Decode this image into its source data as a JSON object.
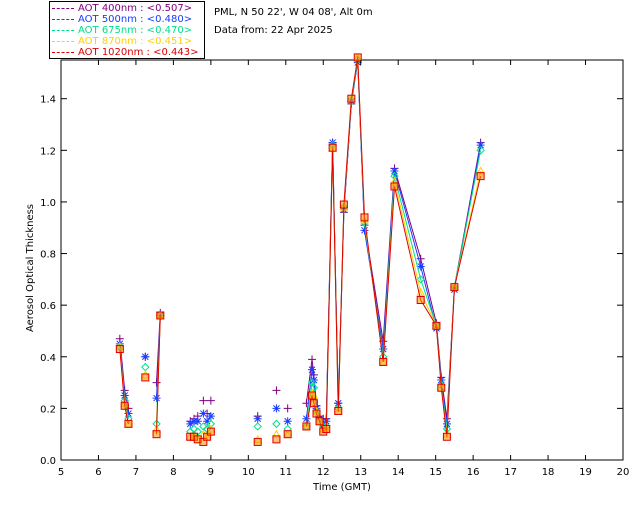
{
  "header": {
    "site": "PML, N 50 22', W 04 08', Alt 0m",
    "date": "Data from: 22 Apr 2025"
  },
  "legend": [
    {
      "label": "AOT  400nm : <0.507>",
      "color": "#800080"
    },
    {
      "label": "AOT  500nm : <0.480>",
      "color": "#1a3cff"
    },
    {
      "label": "AOT  675nm : <0.470>",
      "color": "#00e08a"
    },
    {
      "label": "AOT  870nm : <0.451>",
      "color": "#ffd000"
    },
    {
      "label": "AOT 1020nm : <0.443>",
      "color": "#e00000"
    }
  ],
  "chart_data": {
    "type": "scatter",
    "xlabel": "Time (GMT)",
    "ylabel": "Aerosol Optical Thickness",
    "xlim": [
      5,
      20
    ],
    "ylim": [
      0.0,
      1.55
    ],
    "xticks": [
      5,
      6,
      7,
      8,
      9,
      10,
      11,
      12,
      13,
      14,
      15,
      16,
      17,
      18,
      19,
      20
    ],
    "yticks": [
      0.0,
      0.2,
      0.4,
      0.6,
      0.8,
      1.0,
      1.2,
      1.4
    ],
    "ytick_labels": [
      "0.0",
      "0.2",
      "0.4",
      "0.6",
      "0.8",
      "1.0",
      "1.2",
      "1.4"
    ],
    "grid": false,
    "x": [
      6.57,
      6.7,
      6.8,
      7.25,
      7.55,
      7.65,
      8.45,
      8.55,
      8.65,
      8.8,
      8.9,
      9.0,
      10.25,
      10.75,
      11.05,
      11.55,
      11.7,
      11.75,
      11.82,
      11.9,
      12.0,
      12.08,
      12.25,
      12.4,
      12.55,
      12.75,
      12.92,
      13.1,
      13.6,
      13.9,
      14.6,
      15.02,
      15.15,
      15.3,
      15.5,
      16.2
    ],
    "series": [
      {
        "name": "AOT  400nm : <0.507>",
        "color": "#800080",
        "marker": "plus",
        "values": [
          0.47,
          0.27,
          0.2,
          0.4,
          0.3,
          0.57,
          0.15,
          0.16,
          0.17,
          0.23,
          0.18,
          0.23,
          0.17,
          0.27,
          0.2,
          0.22,
          0.39,
          0.33,
          0.21,
          0.17,
          0.16,
          0.16,
          1.23,
          0.22,
          0.96,
          1.38,
          1.55,
          0.91,
          0.46,
          1.13,
          0.78,
          0.53,
          0.32,
          0.16,
          0.67,
          1.23
        ]
      },
      {
        "name": "AOT  500nm : <0.480>",
        "color": "#1a3cff",
        "marker": "asterisk",
        "values": [
          0.45,
          0.25,
          0.18,
          0.4,
          0.24,
          0.56,
          0.14,
          0.15,
          0.15,
          0.18,
          0.15,
          0.17,
          0.16,
          0.2,
          0.15,
          0.16,
          0.35,
          0.31,
          0.2,
          0.16,
          0.14,
          0.15,
          1.23,
          0.22,
          0.97,
          1.39,
          1.54,
          0.89,
          0.43,
          1.12,
          0.75,
          0.51,
          0.31,
          0.14,
          0.66,
          1.22
        ]
      },
      {
        "name": "AOT  675nm : <0.470>",
        "color": "#00e08a",
        "marker": "diamond",
        "values": [
          0.44,
          0.23,
          0.16,
          0.36,
          0.14,
          0.56,
          0.11,
          0.12,
          0.11,
          0.13,
          0.12,
          0.14,
          0.13,
          0.14,
          0.12,
          0.13,
          0.3,
          0.28,
          0.19,
          0.15,
          0.13,
          0.13,
          1.22,
          0.2,
          0.98,
          1.39,
          1.55,
          0.92,
          0.4,
          1.1,
          0.7,
          0.52,
          0.29,
          0.12,
          0.67,
          1.2
        ]
      },
      {
        "name": "AOT  870nm : <0.451>",
        "color": "#ffd000",
        "marker": "triangle",
        "values": [
          0.44,
          0.22,
          0.14,
          0.33,
          0.12,
          0.56,
          0.09,
          0.09,
          0.08,
          0.1,
          0.09,
          0.12,
          0.08,
          0.1,
          0.1,
          0.13,
          0.26,
          0.25,
          0.19,
          0.15,
          0.12,
          0.12,
          1.21,
          0.19,
          0.98,
          1.4,
          1.56,
          0.93,
          0.38,
          1.08,
          0.65,
          0.52,
          0.28,
          0.1,
          0.67,
          1.12
        ]
      },
      {
        "name": "AOT 1020nm : <0.443>",
        "color": "#e00000",
        "marker": "square",
        "values": [
          0.43,
          0.21,
          0.14,
          0.32,
          0.1,
          0.56,
          0.09,
          0.09,
          0.08,
          0.07,
          0.09,
          0.11,
          0.07,
          0.08,
          0.1,
          0.13,
          0.25,
          0.22,
          0.18,
          0.15,
          0.11,
          0.12,
          1.21,
          0.19,
          0.99,
          1.4,
          1.56,
          0.94,
          0.38,
          1.06,
          0.62,
          0.52,
          0.28,
          0.09,
          0.67,
          1.1
        ]
      }
    ],
    "segments": [
      [
        0,
        2
      ],
      [
        4,
        5
      ],
      [
        15,
        31
      ],
      [
        31,
        35
      ]
    ],
    "highlight_marker_color": "#ff8c00"
  }
}
